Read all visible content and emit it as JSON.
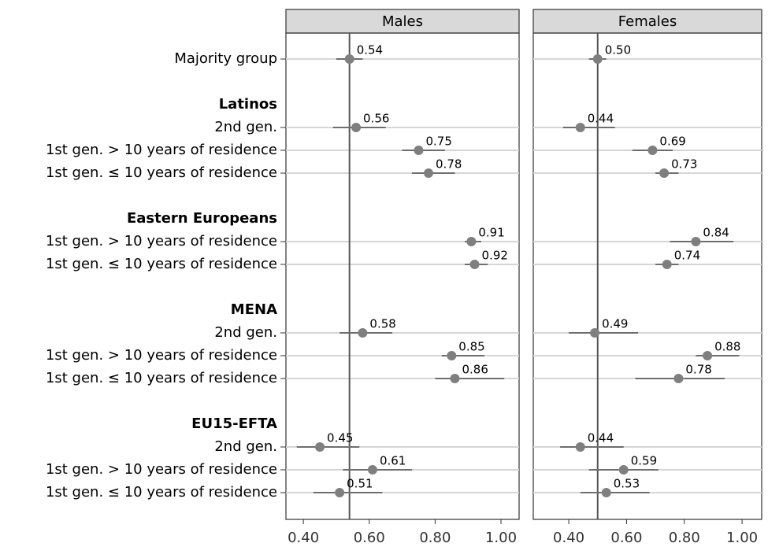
{
  "chart_data": {
    "type": "dot-errorbar",
    "categories": [
      "Majority group",
      null,
      "Latinos",
      "2nd gen.",
      "1st gen. > 10 years of residence",
      "1st gen. ≤ 10 years of residence",
      null,
      "Eastern Europeans",
      "1st gen. > 10 years of residence",
      "1st gen. ≤ 10 years of residence",
      null,
      "MENA",
      "2nd gen.",
      "1st gen. > 10 years of residence",
      "1st gen. ≤ 10 years of residence",
      null,
      "EU15-EFTA",
      "2nd gen.",
      "1st gen. > 10 years of residence",
      "1st gen. ≤ 10 years of residence"
    ],
    "color": "#7f7f7f",
    "series": [
      {
        "name": "Males",
        "values": [
          0.54,
          null,
          null,
          0.56,
          0.75,
          0.78,
          null,
          null,
          0.91,
          0.92,
          null,
          null,
          0.58,
          0.85,
          0.86,
          null,
          null,
          0.45,
          0.61,
          0.51
        ],
        "value_labels": [
          "0.54",
          null,
          null,
          "0.56",
          "0.75",
          "0.78",
          null,
          null,
          "0.91",
          "0.92",
          null,
          null,
          "0.58",
          "0.85",
          "0.86",
          null,
          null,
          "0.45",
          "0.61",
          "0.51"
        ],
        "lower": [
          0.5,
          null,
          null,
          0.49,
          0.7,
          0.73,
          null,
          null,
          0.89,
          0.89,
          null,
          null,
          0.51,
          0.82,
          0.8,
          null,
          null,
          0.38,
          0.52,
          0.43
        ],
        "upper": [
          0.58,
          null,
          null,
          0.65,
          0.83,
          0.86,
          null,
          null,
          0.94,
          0.96,
          null,
          null,
          0.67,
          0.95,
          1.01,
          null,
          null,
          0.57,
          0.73,
          0.64
        ],
        "xlim": [
          0.347,
          1.055
        ],
        "xticks": [
          {
            "value": 0.4,
            "label": "0.40"
          },
          {
            "value": 0.6,
            "label": "0.60"
          },
          {
            "value": 0.8,
            "label": "0.80"
          },
          {
            "value": 1.0,
            "label": "1.00"
          }
        ]
      },
      {
        "name": "Females",
        "values": [
          0.5,
          null,
          null,
          0.44,
          0.69,
          0.73,
          null,
          null,
          0.84,
          0.74,
          null,
          null,
          0.49,
          0.88,
          0.78,
          null,
          null,
          0.44,
          0.59,
          0.53
        ],
        "value_labels": [
          "0.50",
          null,
          null,
          "0.44",
          "0.69",
          "0.73",
          null,
          null,
          "0.84",
          "0.74",
          null,
          null,
          "0.49",
          "0.88",
          "0.78",
          null,
          null,
          "0.44",
          "0.59",
          "0.53"
        ],
        "lower": [
          0.47,
          null,
          null,
          0.38,
          0.62,
          0.7,
          null,
          null,
          0.75,
          0.7,
          null,
          null,
          0.4,
          0.84,
          0.63,
          null,
          null,
          0.37,
          0.47,
          0.44
        ],
        "upper": [
          0.53,
          null,
          null,
          0.56,
          0.76,
          0.78,
          null,
          null,
          0.97,
          0.78,
          null,
          null,
          0.64,
          0.99,
          0.94,
          null,
          null,
          0.59,
          0.71,
          0.68
        ],
        "xlim": [
          0.277,
          1.068
        ],
        "xticks": [
          {
            "value": 0.4,
            "label": "0.40"
          },
          {
            "value": 0.6,
            "label": "0.60"
          },
          {
            "value": 0.8,
            "label": "0.80"
          },
          {
            "value": 1.0,
            "label": "1.00"
          }
        ]
      }
    ]
  }
}
